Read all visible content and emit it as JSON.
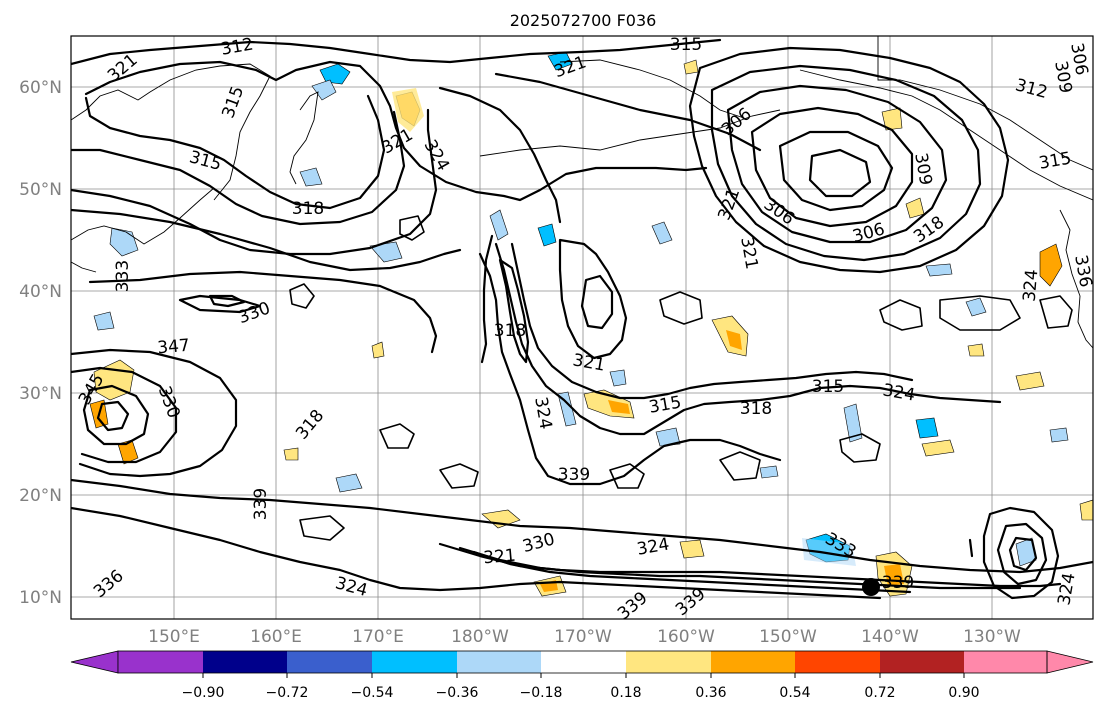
{
  "title": "2025072700 F036",
  "lat_labels": [
    "60°N",
    "50°N",
    "40°N",
    "30°N",
    "20°N",
    "10°N"
  ],
  "lon_labels": [
    "150°E",
    "160°E",
    "170°E",
    "180°W",
    "170°W",
    "160°W",
    "150°W",
    "140°W",
    "130°W"
  ],
  "contour_labels": [
    "312",
    "321",
    "315",
    "315",
    "321",
    "324",
    "315",
    "318",
    "321",
    "306",
    "309",
    "315",
    "312",
    "309",
    "306",
    "306",
    "306",
    "321",
    "321",
    "318",
    "324",
    "336",
    "333",
    "330",
    "347",
    "345",
    "330",
    "318",
    "318",
    "321",
    "315",
    "318",
    "315",
    "324",
    "324",
    "339",
    "339",
    "336",
    "324",
    "321",
    "330",
    "324",
    "333",
    "339",
    "339",
    "339",
    "324"
  ],
  "colorbar": {
    "ticks": [
      "−0.90",
      "−0.72",
      "−0.54",
      "−0.36",
      "−0.18",
      "0.18",
      "0.36",
      "0.54",
      "0.72",
      "0.90"
    ],
    "colors": [
      "#9932cc",
      "#00008b",
      "#3a5fcd",
      "#00bfff",
      "#add8f8",
      "#ffffff",
      "#ffe680",
      "#ffa500",
      "#ff4500",
      "#b22222",
      "#ff88aa"
    ]
  },
  "colors": {
    "map_border": "#000000",
    "grid": "#8c8c8c",
    "contour": "#000000",
    "tick_label": "#808080"
  },
  "marker": {
    "lon_label": "140°W",
    "lat_label": "10°N"
  }
}
